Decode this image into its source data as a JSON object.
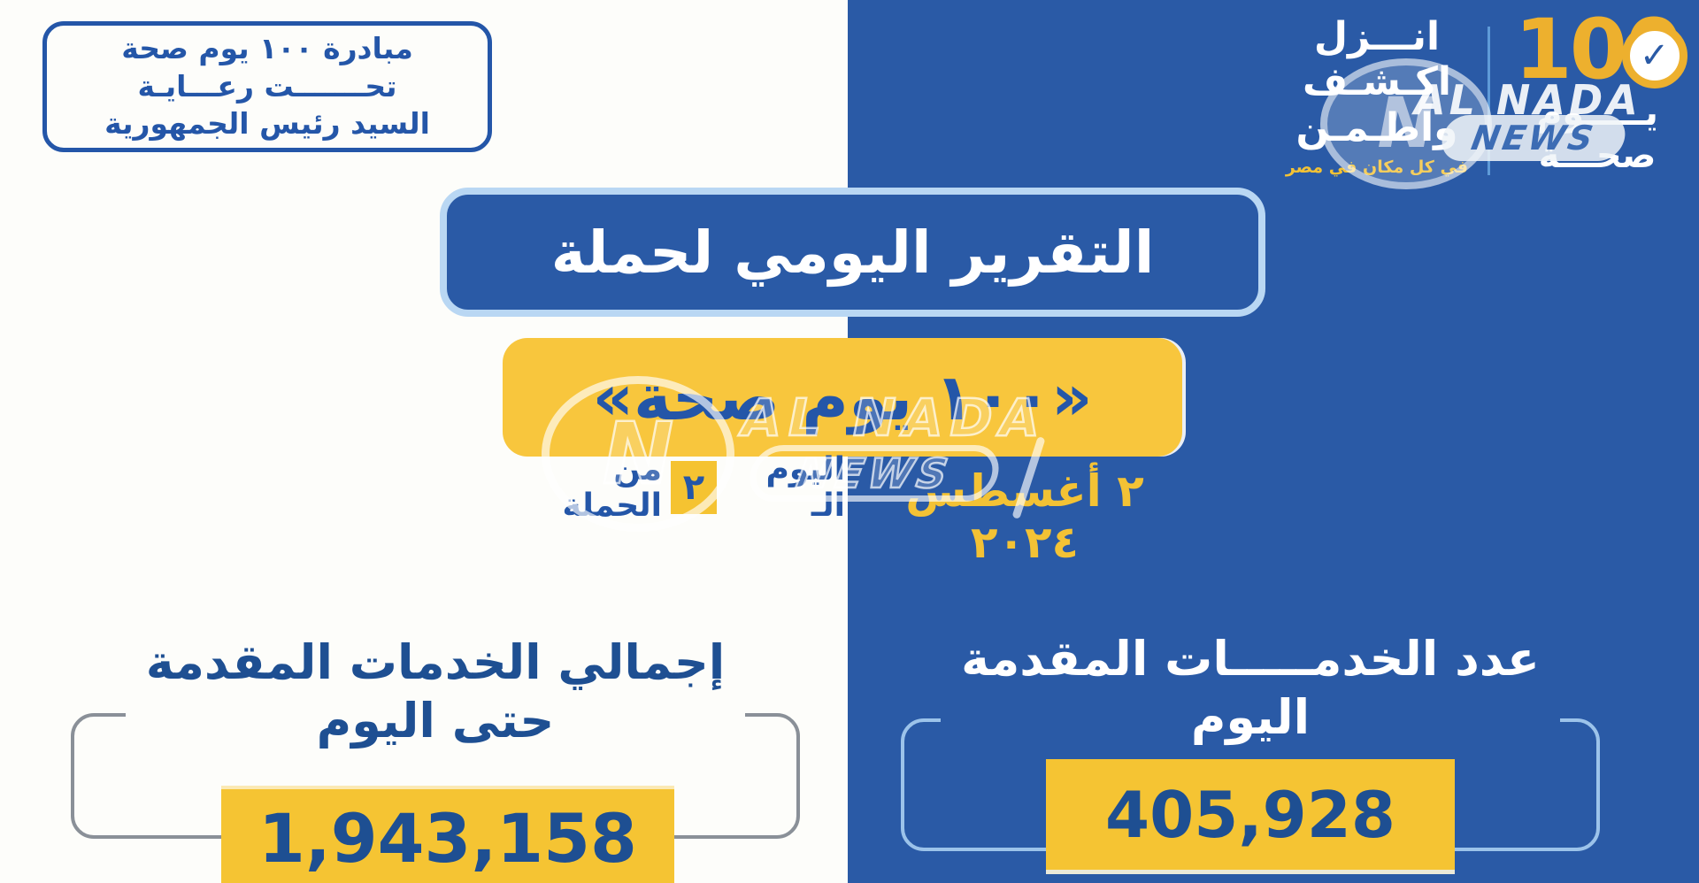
{
  "poster": {
    "patronage_box": {
      "line1": "مبادرة ١٠٠ يوم صحة",
      "line2": "تحـــــــت رعـــايـة",
      "line3": "السيد رئيس الجمهورية"
    },
    "logo_cluster": {
      "slogan_line1": "انـــزل",
      "slogan_line2": "اكـشـف",
      "slogan_line3": "واطـمـن",
      "slogan_subtitle": "في كل مكان في مصر",
      "number": "100",
      "check_icon": "✓",
      "word_day": "يـــــوم",
      "word_health": "صحـــة"
    },
    "title_banner": "التقرير اليومي لحملة",
    "campaign_banner": "«١٠٠ يوم صحة»",
    "date_row": {
      "date": "٢ أغسطس ٢٠٢٤",
      "day_prefix": "اليوم الـ",
      "day_number": "٢",
      "day_suffix": "من الحملة"
    },
    "stats": {
      "total_services": {
        "title_line1": "إجمالي الخدمات المقدمة",
        "title_line2": "حتى اليوم",
        "value": "1,943,158"
      },
      "today_services": {
        "title_line1": "عدد الخدمـــــات المقدمة",
        "title_line2": "اليوم",
        "value": "405,928"
      }
    },
    "watermark": {
      "brand": "AL NADA",
      "sub": "NEWS",
      "monogram": "N"
    },
    "colors": {
      "blue": "#2a5aa6",
      "yellow": "#f8c63d",
      "value_yellow": "#f5c433",
      "dark_blue_text": "#1e4f92",
      "light_blue_border": "#b9d7f3",
      "gray_border": "#8a9098",
      "gold": "#edb02e",
      "divider_blue": "#5f9bd8"
    }
  }
}
